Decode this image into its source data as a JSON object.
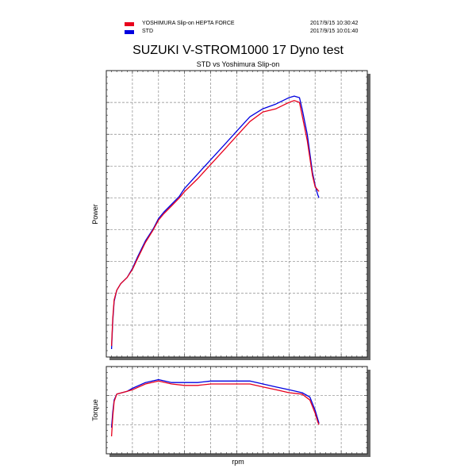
{
  "legend": [
    {
      "label": "YOSHIMURA Slip-on HEPTA FORCE",
      "color": "#e8001c",
      "timestamp": "2017/9/15 10:30:42"
    },
    {
      "label": "STD",
      "color": "#0000e0",
      "timestamp": "2017/9/15 10:01:40"
    }
  ],
  "chart_data": [
    {
      "type": "line",
      "title": "SUZUKI V-STROM1000 17 Dyno test",
      "subtitle": "STD vs Yoshimura Slip-on",
      "xlabel": "rpm",
      "ylabel": "Power",
      "xlim": [
        0,
        10
      ],
      "ylim": [
        0,
        9
      ],
      "grid": true,
      "legend_position": "top-left",
      "series": [
        {
          "name": "YOSHIMURA Slip-on HEPTA FORCE",
          "color": "#e8001c",
          "x": [
            0.2,
            0.25,
            0.3,
            0.4,
            0.55,
            0.8,
            1.0,
            1.2,
            1.5,
            1.8,
            2.0,
            2.2,
            2.5,
            2.8,
            3.0,
            3.5,
            4.0,
            4.5,
            5.0,
            5.5,
            6.0,
            6.5,
            6.75,
            7.0,
            7.2,
            7.4,
            7.5,
            7.7,
            7.9,
            8.0,
            8.1,
            8.15
          ],
          "y": [
            0.35,
            1.25,
            1.8,
            2.1,
            2.3,
            2.5,
            2.75,
            3.1,
            3.6,
            4.0,
            4.3,
            4.5,
            4.75,
            5.0,
            5.2,
            5.6,
            6.05,
            6.5,
            6.95,
            7.4,
            7.7,
            7.8,
            7.9,
            8.0,
            8.06,
            8.0,
            7.6,
            6.8,
            5.7,
            5.35,
            5.25,
            5.2
          ]
        },
        {
          "name": "STD",
          "color": "#0000e0",
          "x": [
            0.2,
            0.25,
            0.3,
            0.4,
            0.55,
            0.8,
            1.0,
            1.2,
            1.5,
            1.8,
            2.0,
            2.2,
            2.5,
            2.8,
            3.0,
            3.5,
            4.0,
            4.5,
            5.0,
            5.5,
            6.0,
            6.5,
            6.75,
            7.0,
            7.2,
            7.4,
            7.5,
            7.7,
            7.9,
            8.0,
            8.1,
            8.15
          ],
          "y": [
            0.25,
            1.15,
            1.75,
            2.1,
            2.3,
            2.5,
            2.78,
            3.15,
            3.65,
            4.03,
            4.35,
            4.55,
            4.8,
            5.05,
            5.3,
            5.75,
            6.2,
            6.65,
            7.1,
            7.55,
            7.8,
            7.95,
            8.05,
            8.15,
            8.2,
            8.15,
            7.8,
            7.0,
            5.8,
            5.4,
            5.1,
            5.0
          ]
        }
      ]
    },
    {
      "type": "line",
      "xlabel": "rpm",
      "ylabel": "Torque",
      "xlim": [
        0,
        10
      ],
      "ylim": [
        0,
        3
      ],
      "grid": true,
      "series": [
        {
          "name": "YOSHIMURA Slip-on HEPTA FORCE",
          "color": "#e8001c",
          "x": [
            0.2,
            0.25,
            0.3,
            0.4,
            0.6,
            0.8,
            1.0,
            1.5,
            2.0,
            2.5,
            3.0,
            3.5,
            4.0,
            4.5,
            5.0,
            5.5,
            6.0,
            6.5,
            7.0,
            7.5,
            7.8,
            8.0,
            8.1,
            8.15
          ],
          "y": [
            0.6,
            1.3,
            1.8,
            2.05,
            2.1,
            2.15,
            2.2,
            2.4,
            2.5,
            2.4,
            2.35,
            2.35,
            2.4,
            2.4,
            2.4,
            2.4,
            2.3,
            2.2,
            2.1,
            2.05,
            1.85,
            1.4,
            1.1,
            1.0
          ]
        },
        {
          "name": "STD",
          "color": "#0000e0",
          "x": [
            0.2,
            0.25,
            0.3,
            0.4,
            0.6,
            0.8,
            1.0,
            1.5,
            2.0,
            2.5,
            3.0,
            3.5,
            4.0,
            4.5,
            5.0,
            5.5,
            6.0,
            6.5,
            7.0,
            7.5,
            7.8,
            8.0,
            8.1,
            8.15
          ],
          "y": [
            0.9,
            1.45,
            1.85,
            2.05,
            2.1,
            2.15,
            2.25,
            2.45,
            2.55,
            2.45,
            2.45,
            2.45,
            2.5,
            2.5,
            2.5,
            2.5,
            2.4,
            2.3,
            2.2,
            2.1,
            1.95,
            1.5,
            1.2,
            1.05
          ]
        }
      ]
    }
  ]
}
